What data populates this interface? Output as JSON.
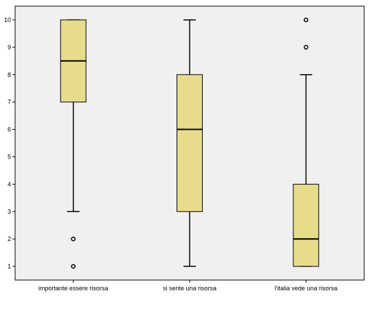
{
  "chart_data": {
    "type": "boxplot",
    "title": "",
    "xlabel": "",
    "ylabel": "",
    "ylim": [
      0.5,
      10.5
    ],
    "y_ticks": [
      "1",
      "2",
      "3",
      "4",
      "5",
      "6",
      "7",
      "8",
      "9",
      "10"
    ],
    "grid": false,
    "legend": "none",
    "categories": [
      "importante essere risorsa",
      "si sente una risorsa",
      "l'italia vede una risorsa"
    ],
    "boxes": [
      {
        "min": 3,
        "q1": 7,
        "median": 8.5,
        "q3": 10,
        "max": 10,
        "outliers": [
          2,
          1
        ]
      },
      {
        "min": 1,
        "q1": 3,
        "median": 6,
        "q3": 8,
        "max": 10,
        "outliers": []
      },
      {
        "min": 1,
        "q1": 1,
        "median": 2,
        "q3": 4,
        "max": 8,
        "outliers": [
          10,
          9
        ]
      }
    ],
    "colors": {
      "page_background": "#ffffff",
      "plot_background": "#f0f0f0",
      "box_fill": "#e6dc8a",
      "stroke": "#000000"
    }
  }
}
